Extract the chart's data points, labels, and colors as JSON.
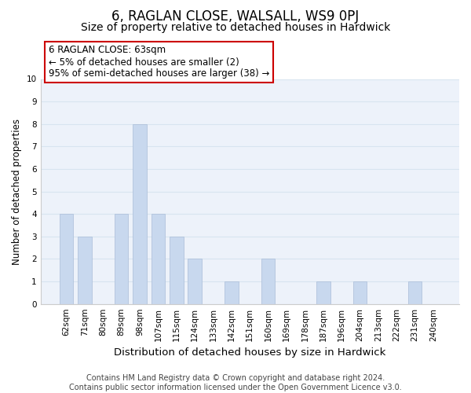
{
  "title": "6, RAGLAN CLOSE, WALSALL, WS9 0PJ",
  "subtitle": "Size of property relative to detached houses in Hardwick",
  "xlabel": "Distribution of detached houses by size in Hardwick",
  "ylabel": "Number of detached properties",
  "categories": [
    "62sqm",
    "71sqm",
    "80sqm",
    "89sqm",
    "98sqm",
    "107sqm",
    "115sqm",
    "124sqm",
    "133sqm",
    "142sqm",
    "151sqm",
    "160sqm",
    "169sqm",
    "178sqm",
    "187sqm",
    "196sqm",
    "204sqm",
    "213sqm",
    "222sqm",
    "231sqm",
    "240sqm"
  ],
  "values": [
    4,
    3,
    0,
    4,
    8,
    4,
    3,
    2,
    0,
    1,
    0,
    2,
    0,
    0,
    1,
    0,
    1,
    0,
    0,
    1,
    0
  ],
  "bar_color": "#c8d8ee",
  "bar_edge_color": "#aabcd8",
  "ylim": [
    0,
    10
  ],
  "yticks": [
    0,
    1,
    2,
    3,
    4,
    5,
    6,
    7,
    8,
    9,
    10
  ],
  "annotation_title": "6 RAGLAN CLOSE: 63sqm",
  "annotation_line1": "← 5% of detached houses are smaller (2)",
  "annotation_line2": "95% of semi-detached houses are larger (38) →",
  "annotation_box_facecolor": "#ffffff",
  "annotation_box_edgecolor": "#cc0000",
  "footer_line1": "Contains HM Land Registry data © Crown copyright and database right 2024.",
  "footer_line2": "Contains public sector information licensed under the Open Government Licence v3.0.",
  "title_fontsize": 12,
  "subtitle_fontsize": 10,
  "xlabel_fontsize": 9.5,
  "ylabel_fontsize": 8.5,
  "tick_fontsize": 7.5,
  "annotation_fontsize": 8.5,
  "footer_fontsize": 7,
  "grid_color": "#d8e4f0",
  "spine_color": "#cccccc",
  "background_color": "#ffffff",
  "plot_bg_color": "#edf2fa"
}
